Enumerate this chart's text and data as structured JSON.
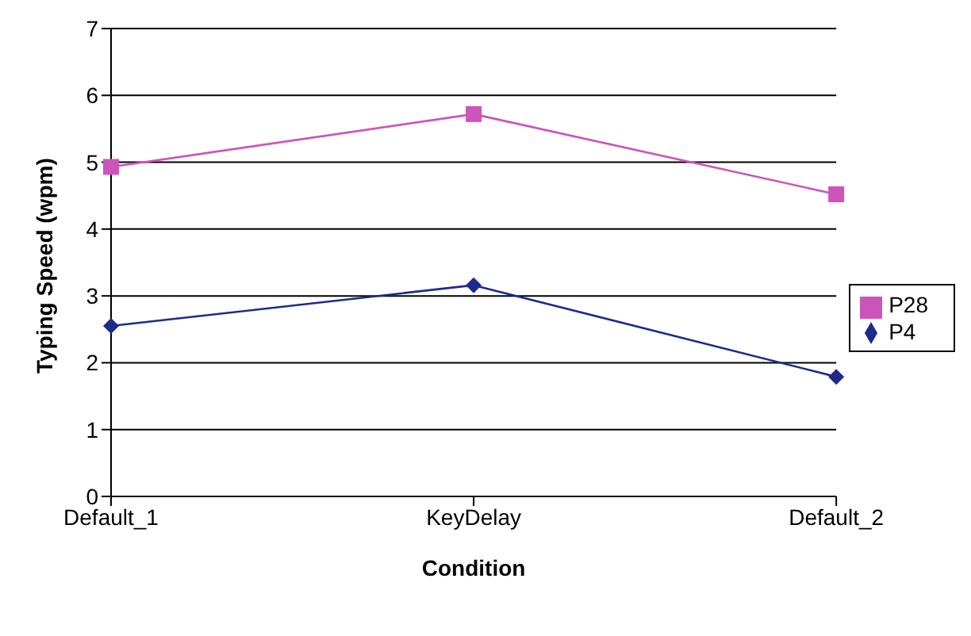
{
  "chart_data": {
    "type": "line",
    "xlabel": "Condition",
    "ylabel": "Typing Speed (wpm)",
    "categories": [
      "Default_1",
      "KeyDelay",
      "Default_2"
    ],
    "series": [
      {
        "name": "P4",
        "color": "#1f2a8a",
        "marker": "diamond",
        "values": [
          2.55,
          3.16,
          1.79
        ]
      },
      {
        "name": "P28",
        "color": "#cc55bb",
        "marker": "square",
        "values": [
          4.93,
          5.72,
          4.52
        ]
      }
    ],
    "ylim": [
      0,
      7
    ],
    "yticks": [
      0,
      1,
      2,
      3,
      4,
      5,
      6,
      7
    ],
    "grid": "y",
    "legend": "right"
  }
}
